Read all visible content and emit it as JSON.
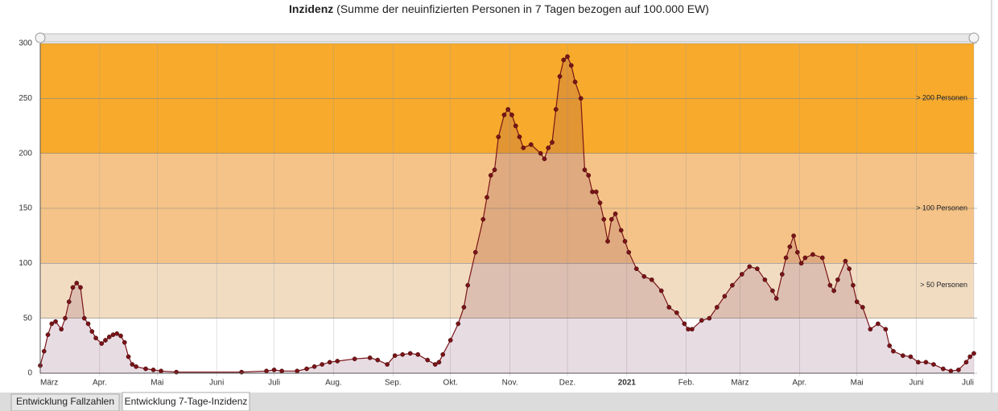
{
  "chart_data": {
    "type": "line",
    "title": "Inzidenz",
    "subtitle": "(Summe der neuinfizierten Personen in 7 Tagen bezogen auf 100.000 EW)",
    "bands": [
      {
        "from": 200,
        "to": 300,
        "label": "> 200 Personen",
        "color": "#f7aa2c"
      },
      {
        "from": 100,
        "to": 200,
        "label": "> 100 Personen",
        "color": "#f5c387"
      },
      {
        "from": 50,
        "to": 100,
        "label": "> 50 Personen",
        "color": "#f1dcc2"
      }
    ],
    "color": "#7a1418",
    "xlim": [
      0,
      487
    ],
    "xticks": [
      {
        "value": 0,
        "label": "März"
      },
      {
        "value": 31,
        "label": "Apr."
      },
      {
        "value": 61,
        "label": "Mai"
      },
      {
        "value": 92,
        "label": "Juni"
      },
      {
        "value": 122,
        "label": "Juli"
      },
      {
        "value": 153,
        "label": "Aug."
      },
      {
        "value": 184,
        "label": "Sep."
      },
      {
        "value": 214,
        "label": "Okt."
      },
      {
        "value": 245,
        "label": "Nov."
      },
      {
        "value": 275,
        "label": "Dez."
      },
      {
        "value": 306,
        "label": "2021"
      },
      {
        "value": 337,
        "label": "Feb."
      },
      {
        "value": 365,
        "label": "März"
      },
      {
        "value": 396,
        "label": "Apr."
      },
      {
        "value": 426,
        "label": "Mai"
      },
      {
        "value": 457,
        "label": "Juni"
      },
      {
        "value": 487,
        "label": "Juli"
      }
    ],
    "ylim": [
      0,
      300
    ],
    "yticks": [
      0,
      50,
      100,
      150,
      200,
      250,
      300
    ],
    "grid": true,
    "x": [
      0,
      2,
      4,
      6,
      8,
      11,
      13,
      15,
      17,
      19,
      21,
      23,
      25,
      27,
      29,
      32,
      34,
      36,
      38,
      40,
      42,
      44,
      46,
      48,
      50,
      55,
      59,
      63,
      71,
      105,
      118,
      122,
      126,
      134,
      139,
      143,
      147,
      151,
      155,
      164,
      172,
      176,
      181,
      185,
      189,
      193,
      197,
      202,
      206,
      208,
      210,
      214,
      218,
      221,
      223,
      227,
      231,
      233,
      235,
      237,
      239,
      242,
      244,
      246,
      248,
      250,
      252,
      256,
      261,
      263,
      265,
      267,
      269,
      271,
      273,
      275,
      277,
      279,
      282,
      284,
      286,
      288,
      290,
      292,
      294,
      296,
      298,
      300,
      303,
      305,
      307,
      311,
      315,
      319,
      324,
      328,
      332,
      336,
      338,
      340,
      345,
      349,
      353,
      357,
      361,
      366,
      370,
      374,
      378,
      382,
      384,
      387,
      389,
      391,
      393,
      395,
      397,
      399,
      403,
      408,
      412,
      414,
      416,
      420,
      422,
      424,
      426,
      429,
      433,
      437,
      441,
      443,
      445,
      450,
      454,
      458,
      462,
      466,
      471,
      475,
      479,
      483,
      485,
      487
    ],
    "values": [
      7,
      20,
      35,
      45,
      47,
      40,
      50,
      65,
      78,
      82,
      78,
      50,
      45,
      38,
      32,
      27,
      30,
      33,
      35,
      36,
      34,
      28,
      15,
      8,
      6,
      4,
      3,
      2,
      1,
      1,
      2,
      3,
      2,
      2,
      4,
      6,
      8,
      10,
      11,
      13,
      14,
      12,
      8,
      16,
      17,
      18,
      17,
      12,
      8,
      10,
      17,
      30,
      45,
      60,
      80,
      110,
      140,
      160,
      180,
      185,
      215,
      235,
      240,
      235,
      225,
      215,
      205,
      208,
      200,
      195,
      205,
      210,
      240,
      270,
      285,
      288,
      280,
      265,
      250,
      185,
      180,
      165,
      165,
      155,
      140,
      120,
      140,
      145,
      130,
      120,
      110,
      95,
      88,
      85,
      75,
      60,
      55,
      45,
      40,
      40,
      48,
      50,
      60,
      70,
      80,
      90,
      97,
      95,
      85,
      75,
      68,
      90,
      105,
      115,
      125,
      110,
      100,
      105,
      108,
      105,
      80,
      75,
      85,
      102,
      95,
      80,
      65,
      60,
      40,
      45,
      40,
      25,
      20,
      16,
      15,
      10,
      10,
      8,
      4,
      2,
      3,
      10,
      15,
      18
    ]
  },
  "tabs": [
    "Entwicklung Fallzahlen",
    "Entwicklung 7-Tage-Inzidenz"
  ]
}
